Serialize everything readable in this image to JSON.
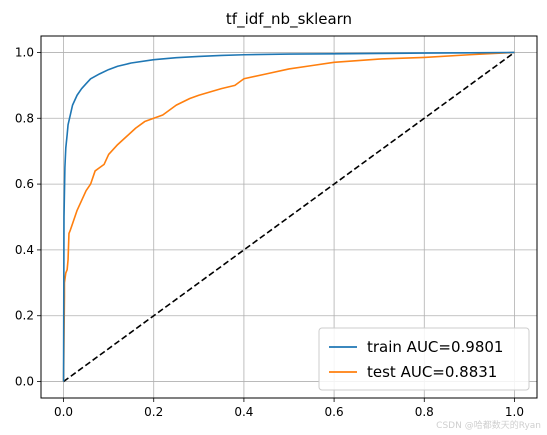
{
  "chart_data": {
    "type": "line",
    "title": "tf_idf_nb_sklearn",
    "xlabel": "",
    "ylabel": "",
    "xlim": [
      -0.05,
      1.05
    ],
    "ylim": [
      -0.05,
      1.05
    ],
    "xticks": [
      0.0,
      0.2,
      0.4,
      0.6,
      0.8,
      1.0
    ],
    "xtick_labels": [
      "0.0",
      "0.2",
      "0.4",
      "0.6",
      "0.8",
      "1.0"
    ],
    "yticks": [
      0.0,
      0.2,
      0.4,
      0.6,
      0.8,
      1.0
    ],
    "ytick_labels": [
      "0.0",
      "0.2",
      "0.4",
      "0.6",
      "0.8",
      "1.0"
    ],
    "grid": true,
    "legend_position": "bottom-right",
    "series": [
      {
        "name": "train AUC=0.9801",
        "color": "#1f77b4",
        "style": "solid",
        "x": [
          0,
          0.001,
          0.003,
          0.005,
          0.008,
          0.01,
          0.015,
          0.02,
          0.03,
          0.04,
          0.05,
          0.06,
          0.08,
          0.1,
          0.12,
          0.15,
          0.2,
          0.25,
          0.3,
          0.35,
          0.4,
          0.5,
          0.6,
          0.7,
          0.8,
          0.9,
          1.0
        ],
        "y": [
          0,
          0.5,
          0.65,
          0.71,
          0.75,
          0.78,
          0.81,
          0.84,
          0.87,
          0.89,
          0.905,
          0.92,
          0.935,
          0.948,
          0.958,
          0.968,
          0.978,
          0.984,
          0.988,
          0.991,
          0.993,
          0.995,
          0.996,
          0.997,
          0.998,
          0.999,
          1.0
        ]
      },
      {
        "name": "test AUC=0.8831",
        "color": "#ff7f0e",
        "style": "solid",
        "x": [
          0,
          0.002,
          0.002,
          0.005,
          0.008,
          0.01,
          0.012,
          0.015,
          0.02,
          0.025,
          0.03,
          0.04,
          0.05,
          0.06,
          0.07,
          0.08,
          0.09,
          0.1,
          0.12,
          0.14,
          0.16,
          0.18,
          0.2,
          0.22,
          0.25,
          0.28,
          0.3,
          0.35,
          0.38,
          0.4,
          0.45,
          0.5,
          0.55,
          0.6,
          0.65,
          0.7,
          0.8,
          0.9,
          1.0
        ],
        "y": [
          0,
          0.26,
          0.3,
          0.33,
          0.34,
          0.37,
          0.45,
          0.46,
          0.48,
          0.5,
          0.52,
          0.55,
          0.58,
          0.6,
          0.64,
          0.65,
          0.66,
          0.69,
          0.72,
          0.745,
          0.77,
          0.79,
          0.8,
          0.81,
          0.84,
          0.86,
          0.87,
          0.89,
          0.9,
          0.92,
          0.935,
          0.95,
          0.96,
          0.97,
          0.975,
          0.98,
          0.985,
          0.993,
          1.0
        ]
      },
      {
        "name": "",
        "color": "#000000",
        "style": "dashed",
        "x": [
          0,
          1
        ],
        "y": [
          0,
          1
        ]
      }
    ]
  },
  "watermark": "CSDN @哈都数天的Ryan"
}
